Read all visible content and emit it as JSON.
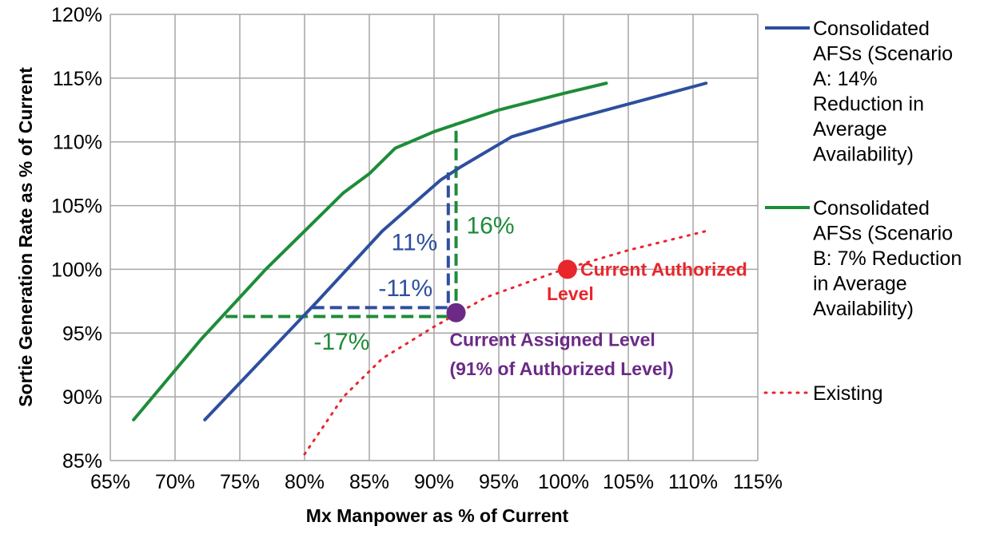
{
  "chart_data": {
    "type": "line",
    "xlabel": "Mx Manpower as % of Current",
    "ylabel": "Sortie Generation Rate as % of Current",
    "xlim": [
      65,
      115
    ],
    "ylim": [
      85,
      120
    ],
    "x_ticks": [
      "65%",
      "70%",
      "75%",
      "80%",
      "85%",
      "90%",
      "95%",
      "100%",
      "105%",
      "110%",
      "115%"
    ],
    "y_ticks": [
      "85%",
      "90%",
      "95%",
      "100%",
      "105%",
      "110%",
      "115%",
      "120%"
    ],
    "grid": true,
    "legend_position": "right",
    "series": [
      {
        "name": "Consolidated AFSs (Scenario A: 14% Reduction in Average Availability)",
        "legend_lines": [
          "Consolidated",
          "AFSs (Scenario",
          "A: 14%",
          "Reduction in",
          "Average",
          "Availability)"
        ],
        "color": "#2E4F9E",
        "style": "solid",
        "points": [
          [
            72.3,
            88.2
          ],
          [
            81.0,
            97.5
          ],
          [
            86.0,
            103.0
          ],
          [
            90.5,
            107.0
          ],
          [
            92.0,
            108.0
          ],
          [
            96.0,
            110.4
          ],
          [
            100.0,
            111.6
          ],
          [
            111.0,
            114.6
          ]
        ]
      },
      {
        "name": "Consolidated AFSs (Scenario B: 7% Reduction in Average Availability)",
        "legend_lines": [
          "Consolidated",
          "AFSs (Scenario",
          "B: 7% Reduction",
          "in Average",
          "Availability)"
        ],
        "color": "#1E8C3A",
        "style": "solid",
        "points": [
          [
            66.8,
            88.2
          ],
          [
            72.0,
            94.5
          ],
          [
            77.0,
            100.0
          ],
          [
            80.5,
            103.5
          ],
          [
            83.0,
            106.0
          ],
          [
            85.0,
            107.5
          ],
          [
            87.0,
            109.5
          ],
          [
            90.0,
            110.8
          ],
          [
            95.0,
            112.5
          ],
          [
            100.0,
            113.8
          ],
          [
            103.3,
            114.6
          ]
        ]
      },
      {
        "name": "Existing",
        "legend_lines": [
          "Existing"
        ],
        "color": "#E8262C",
        "style": "dotted",
        "points": [
          [
            80.0,
            85.5
          ],
          [
            83.0,
            90.0
          ],
          [
            86.0,
            93.0
          ],
          [
            90.0,
            95.5
          ],
          [
            94.0,
            97.8
          ],
          [
            100.0,
            100.0
          ],
          [
            105.0,
            101.5
          ],
          [
            111.0,
            103.0
          ]
        ]
      }
    ],
    "markers": [
      {
        "x": 100.3,
        "y": 100.0,
        "color": "#E8262C"
      },
      {
        "x": 91.7,
        "y": 96.6,
        "color": "#6B2A86"
      }
    ],
    "guides": [
      {
        "color": "#2E4F9E",
        "points": [
          [
            80.6,
            97.0
          ],
          [
            91.1,
            97.0
          ],
          [
            91.1,
            107.6
          ]
        ]
      },
      {
        "color": "#1E8C3A",
        "points": [
          [
            73.9,
            96.3
          ],
          [
            91.7,
            96.3
          ],
          [
            91.7,
            111.5
          ]
        ]
      }
    ],
    "annotations": [
      {
        "text": "11%",
        "x": 86.7,
        "y": 101.5,
        "color": "#2E4F9E",
        "size": "big"
      },
      {
        "text": "16%",
        "x": 92.5,
        "y": 102.8,
        "color": "#1E8C3A",
        "size": "big"
      },
      {
        "text": "-11%",
        "x": 85.7,
        "y": 97.9,
        "color": "#2E4F9E",
        "size": "big"
      },
      {
        "text": "-17%",
        "x": 80.7,
        "y": 93.7,
        "color": "#1E8C3A",
        "size": "big"
      },
      {
        "text": "Current Authorized",
        "x": 101.3,
        "y": 99.5,
        "color": "#E8262C",
        "size": "bold"
      },
      {
        "text": "Level",
        "x": 98.7,
        "y": 97.6,
        "color": "#E8262C",
        "size": "bold"
      },
      {
        "text": "Current Assigned Level",
        "x": 91.2,
        "y": 94.0,
        "color": "#6B2A86",
        "size": "bold"
      },
      {
        "text": "(91% of Authorized Level)",
        "x": 91.2,
        "y": 91.7,
        "color": "#6B2A86",
        "size": "bold"
      }
    ]
  }
}
